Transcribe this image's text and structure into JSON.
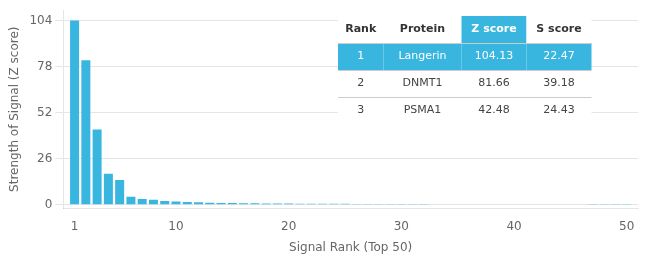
{
  "chart_data": {
    "type": "bar",
    "x": [
      1,
      2,
      3,
      4,
      5,
      6,
      7,
      8,
      9,
      10,
      11,
      12,
      13,
      14,
      15,
      16,
      17,
      18,
      19,
      20,
      21,
      22,
      23,
      24,
      25,
      26,
      27,
      28,
      29,
      30,
      31,
      32,
      33,
      34,
      35,
      36,
      37,
      38,
      39,
      40,
      41,
      42,
      43,
      44,
      45,
      46,
      47,
      48,
      49,
      50
    ],
    "values": [
      104.13,
      81.66,
      42.48,
      17.5,
      14.0,
      4.5,
      3.2,
      2.8,
      2.1,
      1.8,
      1.5,
      1.3,
      1.1,
      1.0,
      0.9,
      0.8,
      0.75,
      0.7,
      0.65,
      0.6,
      0.55,
      0.52,
      0.5,
      0.48,
      0.46,
      0.44,
      0.42,
      0.4,
      0.38,
      0.36,
      0.34,
      0.32,
      0.3,
      0.29,
      0.28,
      0.27,
      0.26,
      0.25,
      0.24,
      0.23,
      0.22,
      0.21,
      0.2,
      0.19,
      0.18,
      0.17,
      0.16,
      0.15,
      0.14,
      0.13
    ],
    "color": "#39b6e0",
    "xlabel": "Signal Rank (Top 50)",
    "ylabel": "Strength of Signal (Z score)",
    "xlim": [
      0,
      51
    ],
    "xticks": [
      1,
      10,
      20,
      30,
      40,
      50
    ],
    "ylim": [
      -2,
      110
    ],
    "yticks": [
      0,
      26,
      52,
      78,
      104
    ],
    "grid": true,
    "table": [
      [
        "Rank",
        "Protein",
        "Z score",
        "S score"
      ],
      [
        "1",
        "Langerin",
        "104.13",
        "22.47"
      ],
      [
        "2",
        "DNMT1",
        "81.66",
        "39.18"
      ],
      [
        "3",
        "PSMA1",
        "42.48",
        "24.43"
      ]
    ]
  }
}
